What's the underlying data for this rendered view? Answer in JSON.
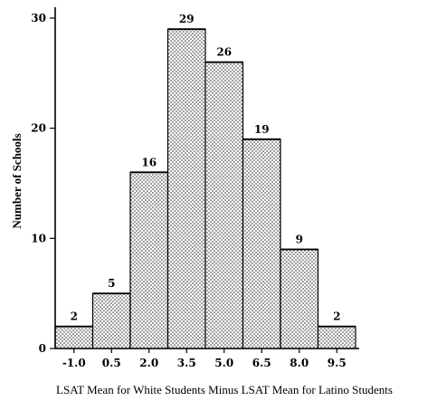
{
  "chart_data": {
    "type": "bar",
    "categories": [
      "-1.0",
      "0.5",
      "2.0",
      "3.5",
      "5.0",
      "6.5",
      "8.0",
      "9.5"
    ],
    "values": [
      2,
      5,
      16,
      29,
      26,
      19,
      9,
      2
    ],
    "data_labels": [
      "2",
      "5",
      "16",
      "29",
      "26",
      "19",
      "9",
      "2"
    ],
    "xlabel": "LSAT Mean for White Students Minus LSAT Mean for Latino Students",
    "ylabel": "Number of Schools",
    "ylim": [
      0,
      30
    ],
    "yticks": [
      0,
      10,
      20,
      30
    ],
    "ytick_labels": [
      "0",
      "10",
      "20",
      "30"
    ],
    "grid": false,
    "legend": "none"
  }
}
